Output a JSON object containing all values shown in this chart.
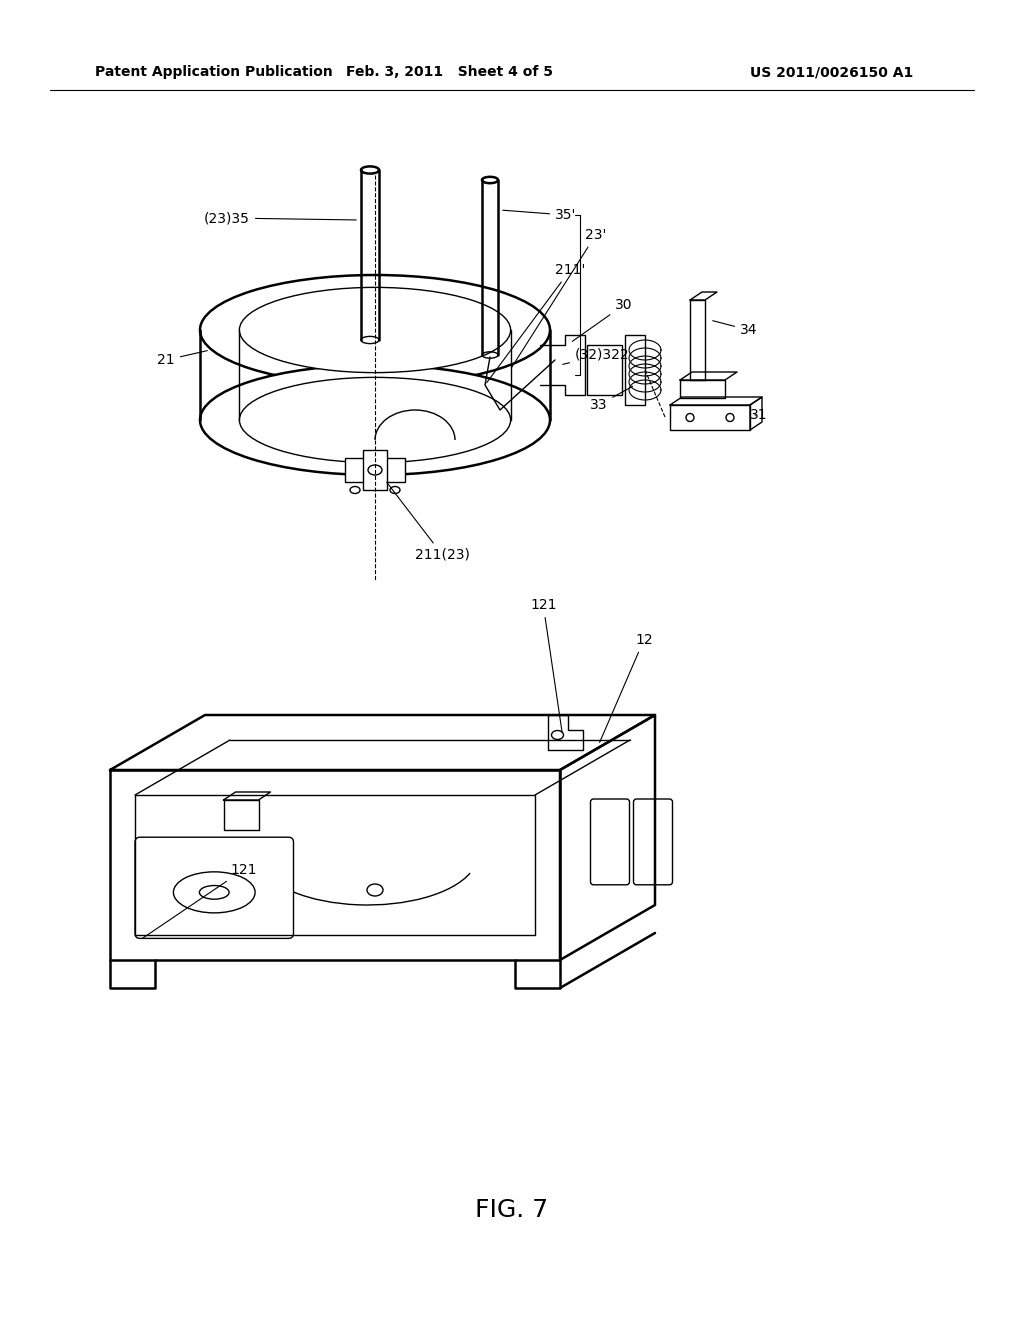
{
  "header_left": "Patent Application Publication",
  "header_mid": "Feb. 3, 2011   Sheet 4 of 5",
  "header_right": "US 2011/0026150 A1",
  "figure_label": "FIG. 7",
  "bg_color": "#ffffff",
  "line_color": "#000000",
  "lw_main": 1.8,
  "lw_thin": 1.0,
  "lw_hair": 0.7,
  "font_size": 10,
  "header_font_size": 10
}
